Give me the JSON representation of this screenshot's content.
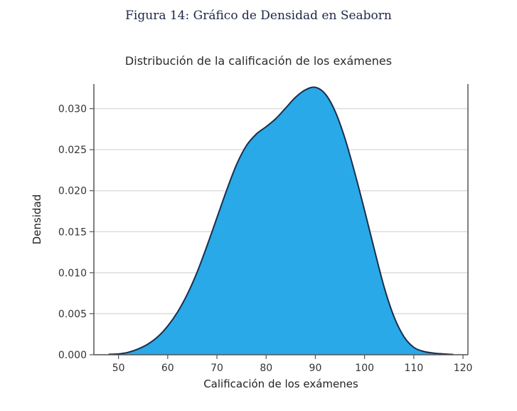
{
  "figure_caption": "Figura 14: Gráfico de Densidad en Seaborn",
  "chart_data": {
    "type": "area",
    "title": "Distribución de la calificación de los exámenes",
    "xlabel": "Calificación de los exámenes",
    "ylabel": "Densidad",
    "xlim": [
      45,
      121
    ],
    "ylim": [
      0,
      0.033
    ],
    "xticks": [
      50,
      60,
      70,
      80,
      90,
      100,
      110,
      120
    ],
    "yticks": [
      0.0,
      0.005,
      0.01,
      0.015,
      0.02,
      0.025,
      0.03
    ],
    "grid": "horizontal",
    "fill_color": "#29a9e8",
    "line_color": "#1a2e4a",
    "x": [
      48,
      50,
      52,
      54,
      56,
      58,
      60,
      62,
      64,
      66,
      68,
      70,
      72,
      74,
      76,
      78,
      80,
      82,
      84,
      86,
      88,
      90,
      92,
      94,
      96,
      98,
      100,
      102,
      104,
      106,
      108,
      110,
      112,
      114,
      116,
      118
    ],
    "y": [
      5e-05,
      0.0001,
      0.0003,
      0.0007,
      0.0013,
      0.0022,
      0.0035,
      0.0052,
      0.0074,
      0.0101,
      0.0133,
      0.0167,
      0.0201,
      0.0232,
      0.0255,
      0.0269,
      0.0278,
      0.0288,
      0.0301,
      0.0314,
      0.0323,
      0.0326,
      0.0318,
      0.0297,
      0.0264,
      0.0222,
      0.0176,
      0.0128,
      0.0082,
      0.0046,
      0.0022,
      0.0009,
      0.0004,
      0.0002,
      0.0001,
      3e-05
    ]
  }
}
